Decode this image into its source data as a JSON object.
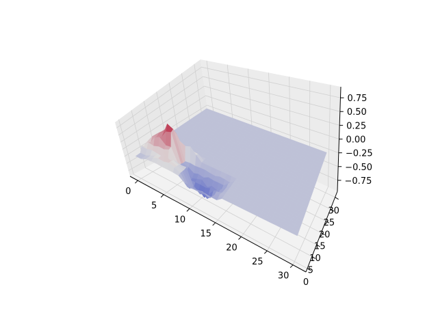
{
  "chart_data": {
    "type": "surface",
    "title": "",
    "xlabel": "",
    "ylabel": "",
    "zlabel": "",
    "colormap": "coolwarm",
    "colormap_colors": [
      "#3b4cc0",
      "#dddcdc",
      "#b40426"
    ],
    "pane_colors": {
      "left": "#e8e8e8",
      "right": "#ececec",
      "floor": "#f2f2f2"
    },
    "grid": true,
    "xlim": [
      -1.5,
      32.5
    ],
    "ylim": [
      -1.5,
      32.5
    ],
    "zlim": [
      -0.95,
      0.95
    ],
    "x_ticks": [
      "0",
      "5",
      "10",
      "15",
      "20",
      "25",
      "30"
    ],
    "y_ticks": [
      "0",
      "5",
      "10",
      "15",
      "20",
      "25",
      "30"
    ],
    "z_ticks": [
      "−0.75",
      "−0.50",
      "−0.25",
      "0.00",
      "0.25",
      "0.50",
      "0.75"
    ],
    "x_tick_values": [
      0,
      5,
      10,
      15,
      20,
      25,
      30
    ],
    "y_tick_values": [
      0,
      5,
      10,
      15,
      20,
      25,
      30
    ],
    "z_tick_values": [
      -0.75,
      -0.5,
      -0.25,
      0.0,
      0.25,
      0.5,
      0.75
    ],
    "grid_size": [
      31,
      31
    ],
    "baseline_z": -0.18,
    "features": [
      {
        "name": "positive-ridge",
        "x_range": [
          0,
          8
        ],
        "y_range": [
          3,
          10
        ],
        "peak_z": 0.9
      },
      {
        "name": "negative-trough",
        "x_range": [
          6,
          15
        ],
        "y_range": [
          0,
          8
        ],
        "min_z": -0.9
      },
      {
        "name": "minor-peak",
        "x_range": [
          2,
          8
        ],
        "y_range": [
          0,
          4
        ],
        "peak_z": 0.2
      }
    ]
  }
}
